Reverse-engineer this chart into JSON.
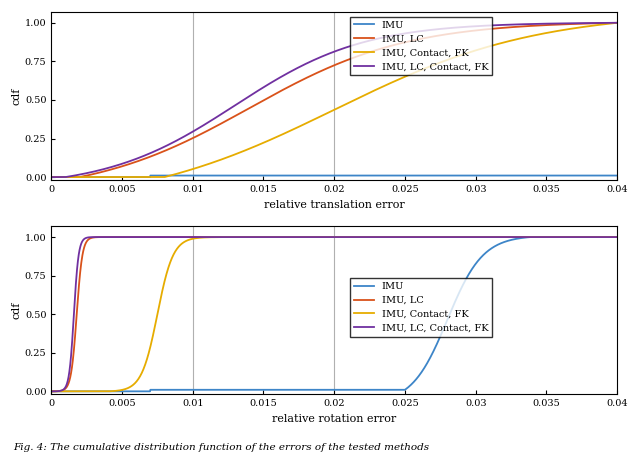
{
  "fig_width": 6.4,
  "fig_height": 4.54,
  "dpi": 100,
  "background_color": "#ffffff",
  "top_plot": {
    "xlabel": "relative translation error",
    "ylabel": "cdf",
    "xlim": [
      0,
      0.04
    ],
    "ylim": [
      -0.02,
      1.07
    ],
    "xticks": [
      0,
      0.005,
      0.01,
      0.015,
      0.02,
      0.025,
      0.03,
      0.035,
      0.04
    ],
    "yticks": [
      0,
      0.25,
      0.5,
      0.75,
      1
    ],
    "vlines": [
      0.01,
      0.02
    ],
    "vline_color": "#b0b0b0"
  },
  "bottom_plot": {
    "xlabel": "relative rotation error",
    "ylabel": "cdf",
    "xlim": [
      0,
      0.04
    ],
    "ylim": [
      -0.02,
      1.07
    ],
    "xticks": [
      0,
      0.005,
      0.01,
      0.015,
      0.02,
      0.025,
      0.03,
      0.035,
      0.04
    ],
    "yticks": [
      0,
      0.25,
      0.5,
      0.75,
      1
    ],
    "vlines": [
      0.01,
      0.02
    ],
    "vline_color": "#b0b0b0"
  },
  "legend": {
    "labels": [
      "IMU",
      "IMU, LC",
      "IMU, Contact, FK",
      "IMU, LC, Contact, FK"
    ],
    "colors": [
      "#3d85c8",
      "#d9521a",
      "#e6ac00",
      "#7030a0"
    ],
    "linewidth": 1.3
  },
  "caption": "Fig. 4: The cumulative distribution function of the errors of the tested methods",
  "font_sizes": {
    "axis_label": 8,
    "tick_label": 7,
    "legend": 7,
    "caption": 7.5
  }
}
